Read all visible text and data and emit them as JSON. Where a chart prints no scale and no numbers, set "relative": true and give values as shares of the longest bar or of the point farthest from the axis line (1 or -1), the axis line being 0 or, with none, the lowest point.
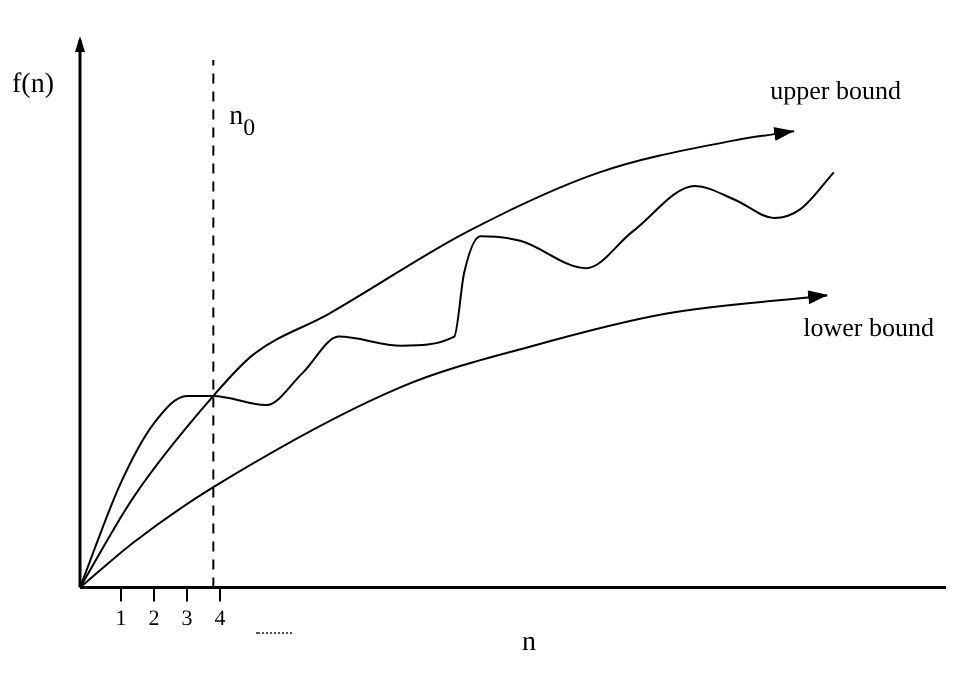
{
  "chart_data": {
    "type": "line",
    "relative": true,
    "xlabel": "n",
    "ylabel": "f(n)",
    "xlim": [
      -0.24,
      26
    ],
    "xticks": [
      1,
      2,
      3,
      4
    ],
    "legend": "right",
    "grid": false,
    "marker": "none",
    "line_style": "solid",
    "series": [
      {
        "name": "upper bound",
        "color": "#000000",
        "x": [
          -0.24,
          1.4,
          3.8,
          5.0,
          7.3,
          11.5,
          15.5,
          19.6,
          21.4
        ],
        "values": [
          0,
          0.2,
          0.42,
          0.51,
          0.6,
          0.78,
          0.91,
          0.98,
          1
        ]
      },
      {
        "color": "#000000",
        "x": [
          -0.24,
          1.0,
          2.0,
          3.0,
          3.8,
          5.4,
          6.5,
          7.6,
          9.5,
          11.1,
          11.4,
          11.9,
          13.1,
          15.1,
          16.5,
          18.4,
          19.6,
          20.8,
          21.6,
          22.6
        ],
        "values": [
          0,
          0.23,
          0.36,
          0.42,
          0.42,
          0.4,
          0.47,
          0.55,
          0.53,
          0.55,
          0.69,
          0.77,
          0.76,
          0.7,
          0.78,
          0.88,
          0.85,
          0.81,
          0.83,
          0.91
        ]
      },
      {
        "name": "lower bound",
        "color": "#000000",
        "x": [
          -0.24,
          1.4,
          3.8,
          9.5,
          13.5,
          17.5,
          22.4
        ],
        "values": [
          0,
          0.1,
          0.22,
          0.44,
          0.53,
          0.6,
          0.64
        ]
      }
    ],
    "ref_lines": [
      {
        "axis": "x",
        "value": 3.8,
        "label": "n$_{0}$",
        "line_style": "dashed"
      }
    ]
  }
}
